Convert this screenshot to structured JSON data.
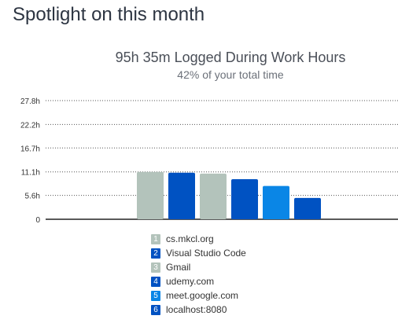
{
  "page": {
    "heading": "Spotlight on this month"
  },
  "summary": {
    "title": "95h 35m Logged During Work Hours",
    "subtitle": "42% of your total time"
  },
  "chart_data": {
    "type": "bar",
    "title": "95h 35m Logged During Work Hours",
    "subtitle": "42% of your total time",
    "categories": [
      "cs.mkcl.org",
      "Visual Studio Code",
      "Gmail",
      "udemy.com",
      "meet.google.com",
      "localhost:8080"
    ],
    "values": [
      11.1,
      10.9,
      10.7,
      9.4,
      7.8,
      5.0
    ],
    "colors": [
      "#b3c3bb",
      "#0052c2",
      "#b3c3bb",
      "#0052c2",
      "#0a86e6",
      "#0052c2"
    ],
    "ylim": [
      0,
      27.8
    ],
    "yticks": [
      0,
      5.6,
      11.1,
      16.7,
      22.2,
      27.8
    ],
    "ytick_labels": [
      "0",
      "5.6h",
      "11.1h",
      "16.7h",
      "22.2h",
      "27.8h"
    ],
    "grid": true,
    "legend_position": "bottom"
  },
  "legend": {
    "items": [
      {
        "num": "1",
        "label": "cs.mkcl.org",
        "color": "#b3c3bb"
      },
      {
        "num": "2",
        "label": "Visual Studio Code",
        "color": "#0052c2"
      },
      {
        "num": "3",
        "label": "Gmail",
        "color": "#b3c3bb"
      },
      {
        "num": "4",
        "label": "udemy.com",
        "color": "#0052c2"
      },
      {
        "num": "5",
        "label": "meet.google.com",
        "color": "#0a86e6"
      },
      {
        "num": "6",
        "label": "localhost:8080",
        "color": "#0052c2"
      }
    ]
  }
}
